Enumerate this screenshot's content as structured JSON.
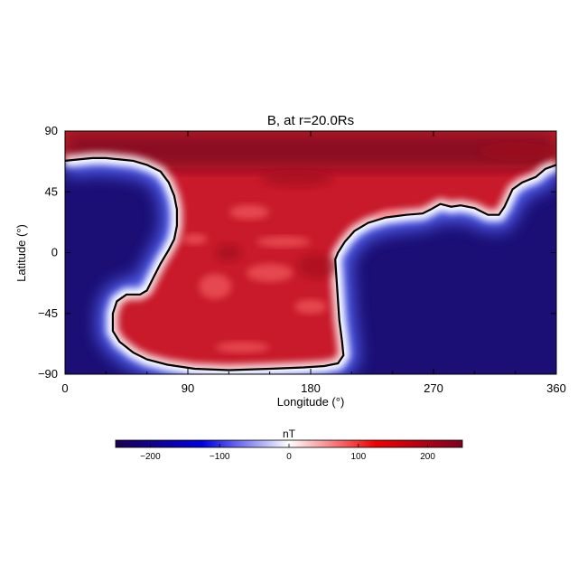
{
  "chart_data": {
    "type": "heatmap",
    "title": "B, at r=20.0Rs",
    "xlabel": "Longitude (°)",
    "ylabel": "Latitude (°)",
    "xlim": [
      0,
      360
    ],
    "ylim": [
      -90,
      90
    ],
    "xticks": [
      "0",
      "90",
      "180",
      "270",
      "360"
    ],
    "yticks": [
      "90",
      "45",
      "0",
      "−45",
      "−90"
    ],
    "colorbar": {
      "label": "nT",
      "range": [
        -250,
        250
      ],
      "ticks": [
        "−200",
        "−100",
        "0",
        "100",
        "200"
      ],
      "tick_values": [
        -200,
        -100,
        0,
        100,
        200
      ],
      "colors": [
        "#1a0050",
        "#0000ff",
        "#ffffff",
        "#ff0000",
        "#8b0020"
      ]
    },
    "description_regions": {
      "positive_polarity_color": "#c81a2a",
      "negative_polarity_color": "#1b0f75",
      "neutral_line_color": "#000000"
    },
    "neutral_line": [
      [
        0,
        68
      ],
      [
        10,
        69
      ],
      [
        20,
        70
      ],
      [
        30,
        70
      ],
      [
        40,
        69
      ],
      [
        50,
        68
      ],
      [
        60,
        65
      ],
      [
        70,
        60
      ],
      [
        76,
        52
      ],
      [
        80,
        42
      ],
      [
        82,
        32
      ],
      [
        82,
        20
      ],
      [
        80,
        10
      ],
      [
        76,
        2
      ],
      [
        70,
        -8
      ],
      [
        65,
        -18
      ],
      [
        60,
        -28
      ],
      [
        55,
        -31
      ],
      [
        45,
        -31
      ],
      [
        38,
        -36
      ],
      [
        35,
        -45
      ],
      [
        35,
        -58
      ],
      [
        40,
        -66
      ],
      [
        50,
        -74
      ],
      [
        60,
        -79
      ],
      [
        75,
        -83
      ],
      [
        95,
        -86
      ],
      [
        120,
        -87
      ],
      [
        150,
        -86
      ],
      [
        175,
        -85
      ],
      [
        190,
        -84
      ],
      [
        200,
        -82
      ],
      [
        204,
        -76
      ],
      [
        203,
        -66
      ],
      [
        201,
        -50
      ],
      [
        200,
        -35
      ],
      [
        199,
        -20
      ],
      [
        198,
        -5
      ],
      [
        200,
        0
      ],
      [
        205,
        8
      ],
      [
        212,
        16
      ],
      [
        222,
        22
      ],
      [
        235,
        26
      ],
      [
        250,
        28
      ],
      [
        262,
        29
      ],
      [
        268,
        32
      ],
      [
        275,
        36
      ],
      [
        283,
        34
      ],
      [
        290,
        35
      ],
      [
        300,
        33
      ],
      [
        310,
        28
      ],
      [
        318,
        28
      ],
      [
        322,
        34
      ],
      [
        328,
        47
      ],
      [
        335,
        52
      ],
      [
        345,
        56
      ],
      [
        352,
        62
      ],
      [
        360,
        65
      ]
    ]
  }
}
